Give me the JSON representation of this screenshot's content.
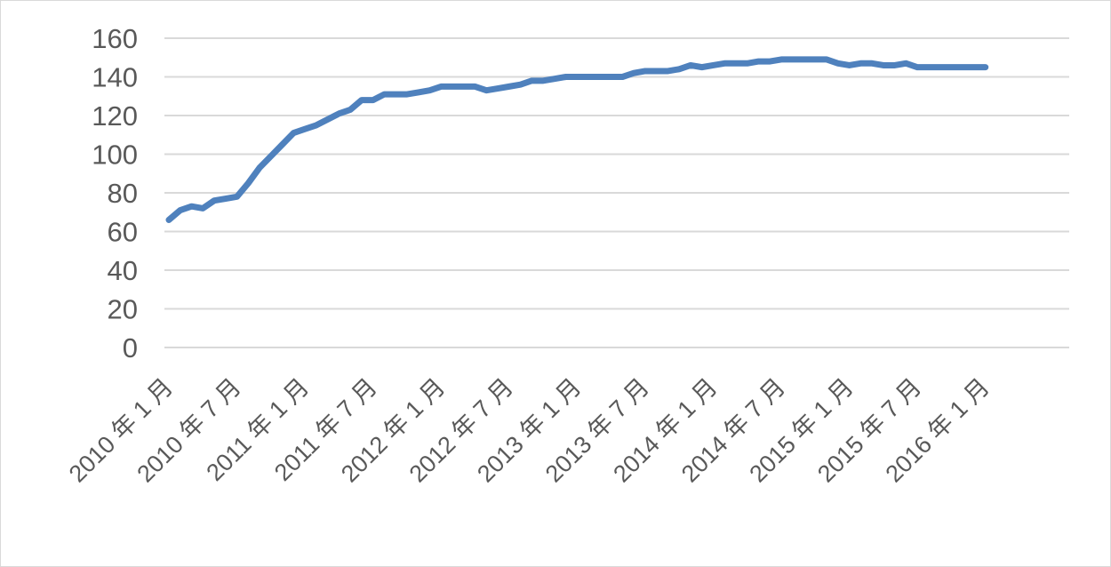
{
  "chart_data": {
    "type": "line",
    "title": "",
    "xlabel": "",
    "ylabel": "",
    "ylim": [
      0,
      160
    ],
    "yticks": [
      0,
      20,
      40,
      60,
      80,
      100,
      120,
      140,
      160
    ],
    "grid": true,
    "legend": "none",
    "x_tick_labels": [
      "2010 年 1 月",
      "2010 年 7 月",
      "2011 年 1 月",
      "2011 年 7 月",
      "2012 年 1 月",
      "2012 年 7 月",
      "2013 年 1 月",
      "2013 年 7 月",
      "2014 年 1 月",
      "2014 年 7 月",
      "2015 年 1 月",
      "2015 年 7 月",
      "2016 年 1 月"
    ],
    "x_start": "2010-01",
    "series": [
      {
        "color": "#4f81bd",
        "values": [
          66,
          71,
          73,
          72,
          76,
          77,
          78,
          85,
          93,
          99,
          105,
          111,
          113,
          115,
          118,
          121,
          123,
          128,
          128,
          131,
          131,
          131,
          132,
          133,
          135,
          135,
          135,
          135,
          133,
          134,
          135,
          136,
          138,
          138,
          139,
          140,
          140,
          140,
          140,
          140,
          140,
          142,
          143,
          143,
          143,
          144,
          146,
          145,
          146,
          147,
          147,
          147,
          148,
          148,
          149,
          149,
          149,
          149,
          149,
          147,
          146,
          147,
          147,
          146,
          146,
          147,
          145,
          145,
          145,
          145,
          145,
          145,
          145
        ]
      }
    ]
  }
}
